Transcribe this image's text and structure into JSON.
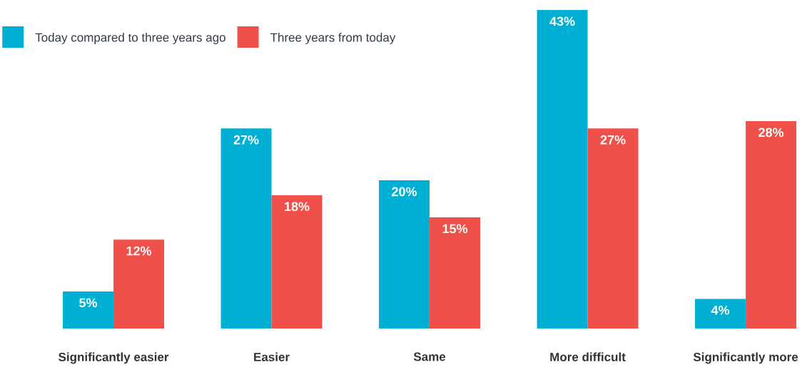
{
  "chart_data": {
    "type": "bar",
    "categories": [
      "Significantly easier",
      "Easier",
      "Same",
      "More difficult",
      "Significantly more"
    ],
    "series": [
      {
        "name": "Today compared to three years ago",
        "color": "#00b0d4",
        "values": [
          5,
          27,
          20,
          43,
          4
        ],
        "value_labels": [
          "5%",
          "27%",
          "20%",
          "43%",
          "4%"
        ]
      },
      {
        "name": "Three years from today",
        "color": "#f0504a",
        "values": [
          12,
          18,
          15,
          27,
          28
        ],
        "value_labels": [
          "12%",
          "18%",
          "15%",
          "27%",
          "28%"
        ]
      }
    ],
    "legend": "top left"
  }
}
